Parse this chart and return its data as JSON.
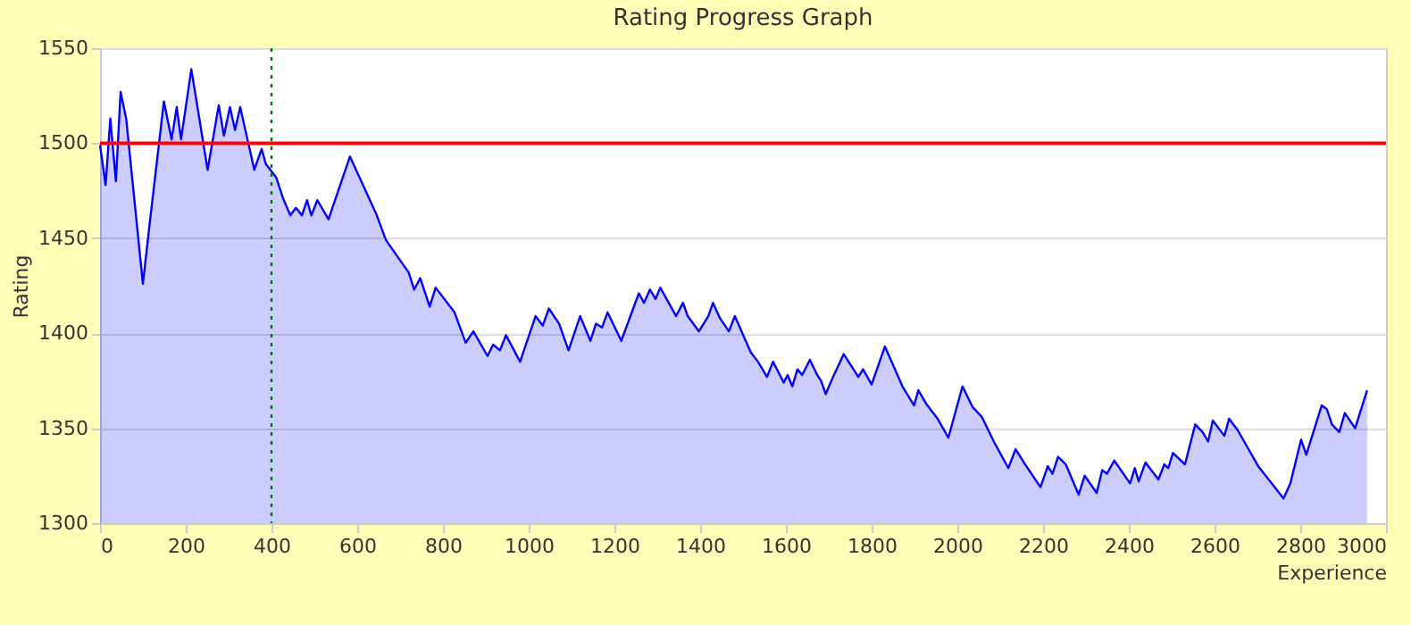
{
  "chart_data": {
    "type": "area",
    "title": "Rating Progress Graph",
    "xlabel": "Experience",
    "ylabel": "Rating",
    "xlim": [
      0,
      3000
    ],
    "xticks": [
      0,
      200,
      400,
      600,
      800,
      1000,
      1200,
      1400,
      1600,
      1800,
      2000,
      2200,
      2400,
      2600,
      2800,
      3000
    ],
    "ylim": [
      1300,
      1550
    ],
    "yticks": [
      1300,
      1350,
      1400,
      1450,
      1500,
      1550
    ],
    "grid": "y",
    "ref_lines": [
      {
        "axis": "y",
        "value": 1500,
        "color": "#ff0000",
        "line_style": "solid"
      },
      {
        "axis": "x",
        "value": 400,
        "color": "#007700",
        "line_style": "dotted"
      }
    ],
    "series": [
      {
        "color": "#0000ff",
        "x": [
          0,
          13,
          24,
          37,
          48,
          61,
          100,
          117,
          149,
          167,
          179,
          189,
          213,
          251,
          277,
          289,
          303,
          315,
          327,
          360,
          377,
          387,
          411,
          427,
          444,
          457,
          471,
          483,
          493,
          507,
          533,
          583,
          644,
          667,
          720,
          733,
          747,
          769,
          783,
          827,
          853,
          871,
          904,
          917,
          933,
          947,
          980,
          1016,
          1033,
          1047,
          1071,
          1093,
          1120,
          1144,
          1157,
          1171,
          1184,
          1216,
          1257,
          1269,
          1283,
          1296,
          1307,
          1344,
          1360,
          1371,
          1397,
          1419,
          1430,
          1446,
          1467,
          1481,
          1518,
          1535,
          1556,
          1570,
          1595,
          1604,
          1615,
          1627,
          1638,
          1656,
          1673,
          1682,
          1693,
          1710,
          1735,
          1769,
          1780,
          1800,
          1831,
          1872,
          1899,
          1909,
          1927,
          1954,
          1979,
          2012,
          2036,
          2057,
          2085,
          2119,
          2136,
          2158,
          2194,
          2211,
          2222,
          2235,
          2253,
          2283,
          2297,
          2325,
          2338,
          2349,
          2366,
          2403,
          2414,
          2423,
          2439,
          2469,
          2483,
          2492,
          2503,
          2531,
          2555,
          2572,
          2585,
          2596,
          2623,
          2634,
          2654,
          2702,
          2761,
          2777,
          2802,
          2814,
          2850,
          2862,
          2874,
          2891,
          2904,
          2928,
          2956
        ],
        "values": [
          1499,
          1478,
          1513,
          1480,
          1527,
          1513,
          1426,
          1460,
          1522,
          1502,
          1519,
          1502,
          1539,
          1486,
          1520,
          1504,
          1519,
          1507,
          1519,
          1486,
          1497,
          1489,
          1482,
          1471,
          1462,
          1466,
          1462,
          1470,
          1462,
          1470,
          1460,
          1493,
          1463,
          1449,
          1432,
          1423,
          1429,
          1414,
          1424,
          1411,
          1395,
          1401,
          1388,
          1394,
          1391,
          1399,
          1385,
          1409,
          1404,
          1413,
          1405,
          1391,
          1409,
          1396,
          1405,
          1403,
          1411,
          1396,
          1421,
          1416,
          1423,
          1418,
          1424,
          1409,
          1416,
          1409,
          1401,
          1409,
          1416,
          1408,
          1401,
          1409,
          1390,
          1385,
          1377,
          1385,
          1374,
          1378,
          1372,
          1381,
          1378,
          1386,
          1378,
          1375,
          1368,
          1377,
          1389,
          1377,
          1381,
          1373,
          1393,
          1372,
          1362,
          1370,
          1363,
          1355,
          1345,
          1372,
          1361,
          1356,
          1343,
          1329,
          1339,
          1331,
          1319,
          1330,
          1326,
          1335,
          1331,
          1315,
          1325,
          1316,
          1328,
          1326,
          1333,
          1321,
          1329,
          1322,
          1332,
          1323,
          1331,
          1329,
          1337,
          1331,
          1352,
          1348,
          1343,
          1354,
          1346,
          1355,
          1349,
          1330,
          1313,
          1321,
          1344,
          1336,
          1362,
          1360,
          1352,
          1348,
          1358,
          1350,
          1370
        ]
      }
    ]
  }
}
